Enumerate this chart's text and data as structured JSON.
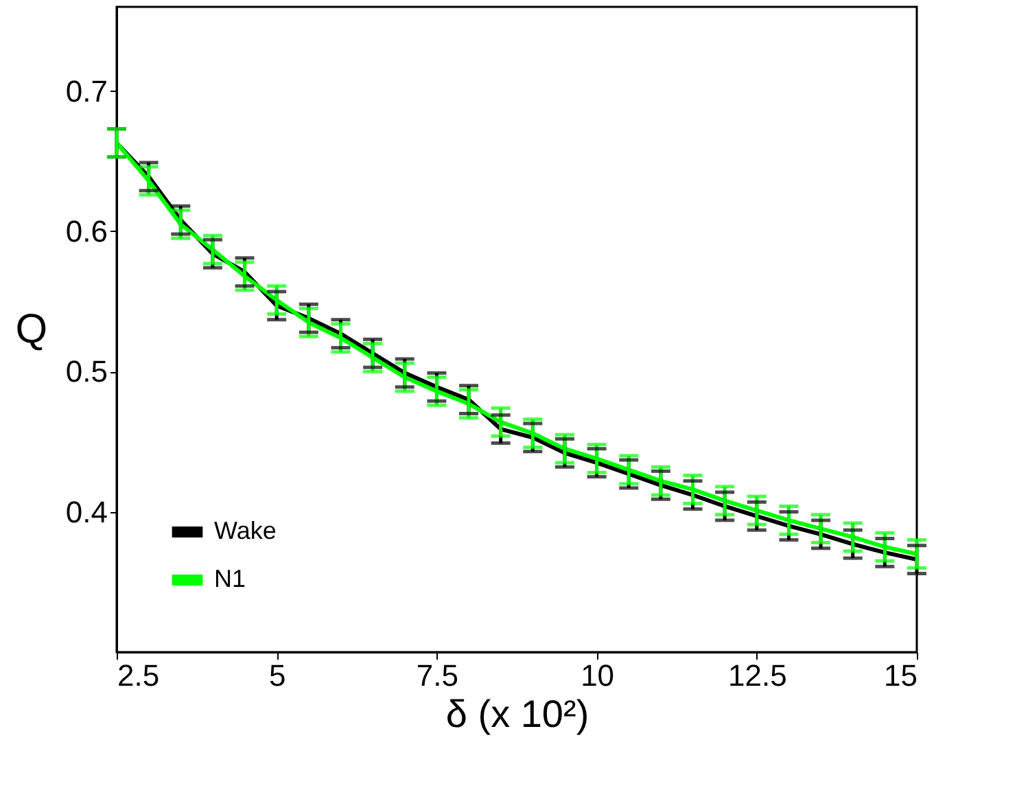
{
  "chart_data": {
    "type": "line",
    "xlabel": "δ (x 10²)",
    "ylabel": "Q",
    "x": [
      2.5,
      3,
      3.5,
      4,
      4.5,
      5,
      5.5,
      6,
      6.5,
      7,
      7.5,
      8,
      8.5,
      9,
      9.5,
      10,
      10.5,
      11,
      11.5,
      12,
      12.5,
      13,
      13.5,
      14,
      14.5,
      15
    ],
    "series": [
      {
        "name": "Wake",
        "color": "#000000",
        "values": [
          0.663,
          0.639,
          0.608,
          0.584,
          0.571,
          0.547,
          0.538,
          0.527,
          0.513,
          0.499,
          0.489,
          0.48,
          0.459,
          0.453,
          0.442,
          0.435,
          0.427,
          0.419,
          0.412,
          0.404,
          0.397,
          0.39,
          0.384,
          0.377,
          0.371,
          0.366
        ],
        "errors": [
          0.01,
          0.01,
          0.01,
          0.01,
          0.01,
          0.01,
          0.01,
          0.01,
          0.01,
          0.01,
          0.01,
          0.01,
          0.01,
          0.01,
          0.01,
          0.01,
          0.01,
          0.01,
          0.01,
          0.01,
          0.01,
          0.01,
          0.01,
          0.01,
          0.01,
          0.01
        ]
      },
      {
        "name": "N1",
        "color": "#00ff00",
        "values": [
          0.663,
          0.636,
          0.605,
          0.587,
          0.568,
          0.551,
          0.535,
          0.524,
          0.51,
          0.496,
          0.486,
          0.477,
          0.464,
          0.456,
          0.445,
          0.438,
          0.43,
          0.422,
          0.416,
          0.408,
          0.401,
          0.394,
          0.388,
          0.382,
          0.375,
          0.37
        ],
        "errors": [
          0.01,
          0.01,
          0.01,
          0.01,
          0.01,
          0.01,
          0.01,
          0.01,
          0.01,
          0.01,
          0.01,
          0.01,
          0.01,
          0.01,
          0.01,
          0.01,
          0.01,
          0.01,
          0.01,
          0.01,
          0.01,
          0.01,
          0.01,
          0.01,
          0.01,
          0.01
        ]
      }
    ],
    "xlim": [
      2.5,
      15
    ],
    "xticks": [
      2.5,
      5,
      7.5,
      10,
      12.5,
      15
    ],
    "ylim": [
      0.3,
      0.76
    ],
    "yticks": [
      0.4,
      0.5,
      0.6,
      0.7
    ],
    "legend": "bottom left",
    "grid": false,
    "marker": "none",
    "line_style": "solid"
  }
}
